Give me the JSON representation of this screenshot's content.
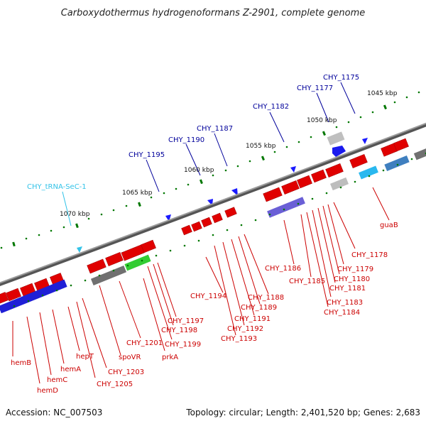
{
  "title": "Carboxydothermus hydrogenoformans Z-2901, complete genome",
  "accession": "Accession: NC_007503",
  "summary": "Topology: circular; Length: 2,401,520 bp; Genes: 2,683",
  "colors": {
    "forward_label": "#00009b",
    "rna_label": "#33c3e8",
    "reverse_label": "#cc0000",
    "backbone": "#777777",
    "tick": "#007700"
  },
  "kbp_ticks": [
    "1045 kbp",
    "1050 kbp",
    "1055 kbp",
    "1060 kbp",
    "1065 kbp",
    "1070 kbp"
  ],
  "upper_labels": [
    "CHY_1175",
    "CHY_1177",
    "CHY_1182",
    "CHY_1187",
    "CHY_1190",
    "CHY_1195",
    "CHY_tRNA-SeC-1"
  ],
  "lower_labels": [
    "guaB",
    "CHY_1178",
    "CHY_1179",
    "CHY_1180",
    "CHY_1181",
    "CHY_1183",
    "CHY_1184",
    "CHY_1185",
    "CHY_1186",
    "CHY_1188",
    "CHY_1189",
    "CHY_1191",
    "CHY_1192",
    "CHY_1193",
    "CHY_1194",
    "CHY_1197",
    "CHY_1198",
    "CHY_1199",
    "prkA",
    "CHY_1201",
    "spoVR",
    "CHY_1203",
    "CHY_1205",
    "hepT",
    "hemA",
    "hemC",
    "hemB",
    "hemD"
  ]
}
